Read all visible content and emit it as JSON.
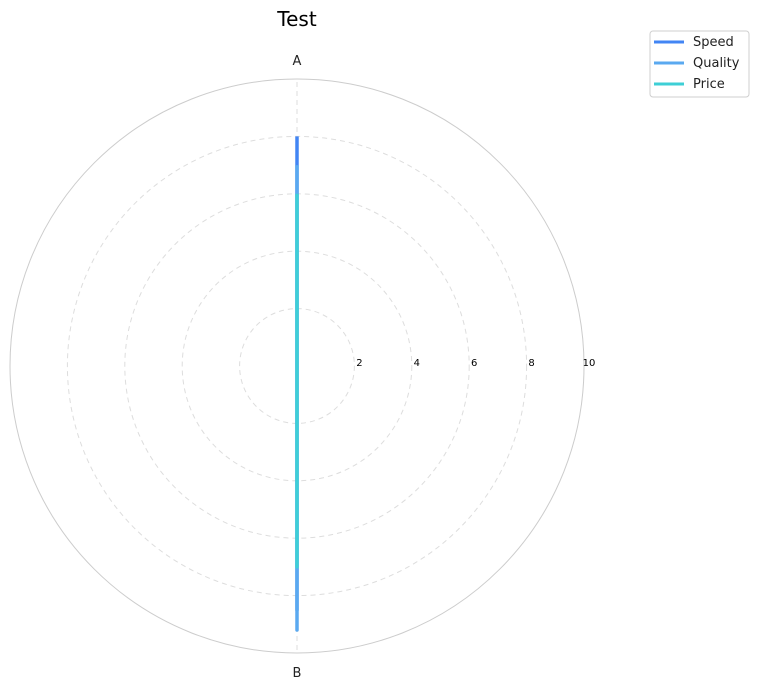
{
  "chart_data": {
    "type": "radar",
    "title": "Test",
    "axes": [
      "A",
      "B"
    ],
    "r_ticks": [
      2,
      4,
      6,
      8,
      10
    ],
    "r_range": [
      0,
      10
    ],
    "grid": true,
    "legend_position": "top-right",
    "series": [
      {
        "name": "Speed",
        "values": [
          8,
          8.5
        ],
        "color": "#4285f4"
      },
      {
        "name": "Quality",
        "values": [
          7,
          9.2
        ],
        "color": "#5aa9f0"
      },
      {
        "name": "Price",
        "values": [
          6,
          7
        ],
        "color": "#3ecfd6"
      }
    ]
  }
}
